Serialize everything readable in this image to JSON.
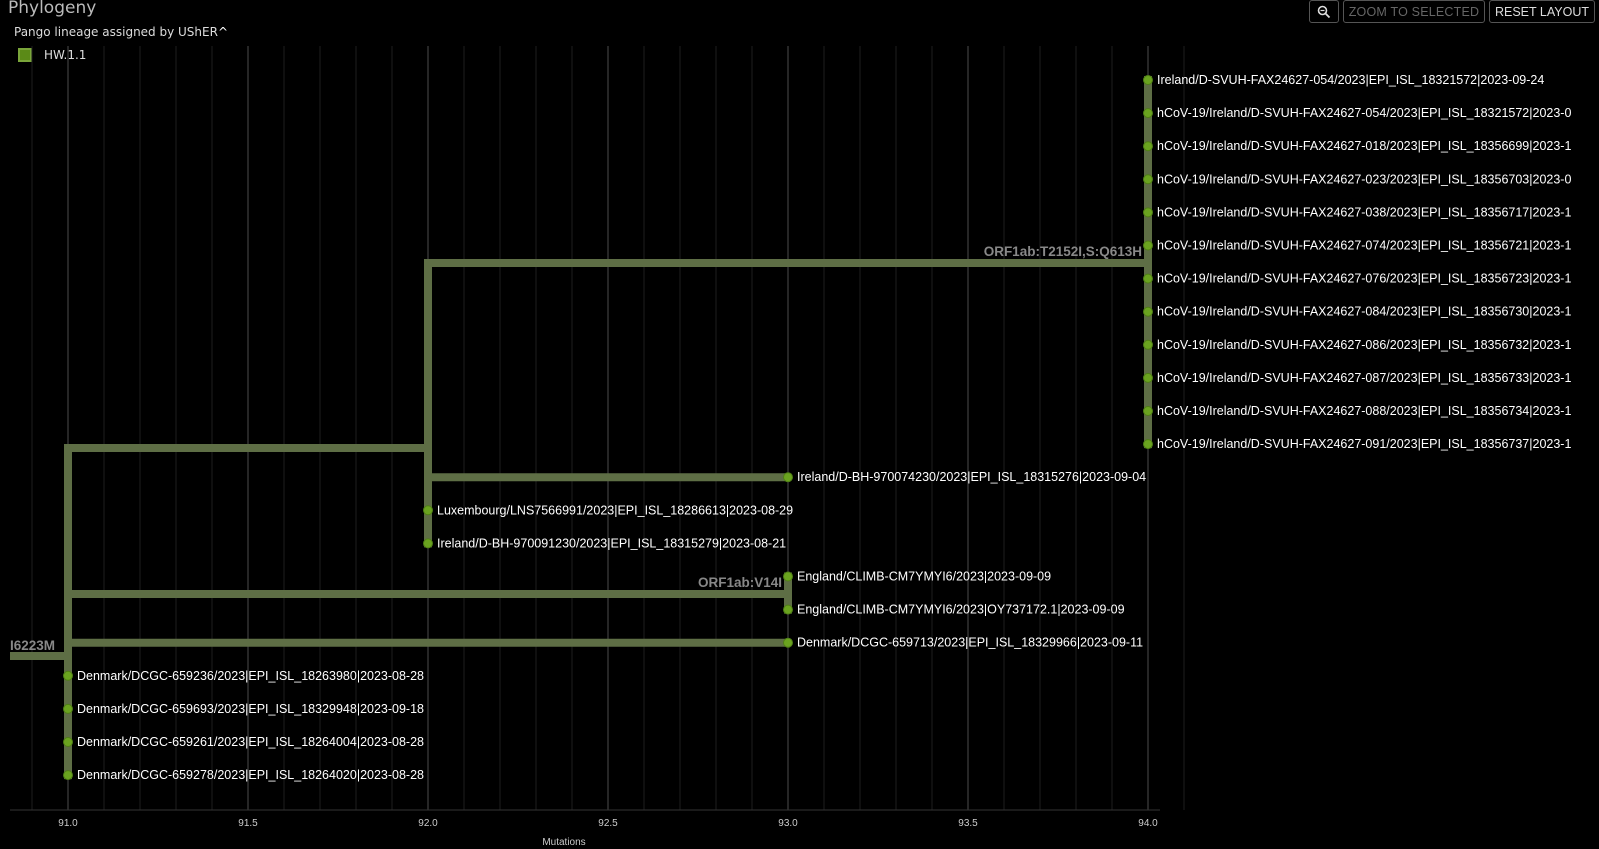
{
  "panel": {
    "title": "Phylogeny"
  },
  "legend": {
    "header": "Pango lineage assigned by UShER",
    "chevron": "^",
    "items": [
      {
        "label": "HW.1.1",
        "color": "#5b8a17"
      }
    ]
  },
  "toolbar": {
    "zoom_icon": "magnifier-icon",
    "zoom_selected_label": "ZOOM TO SELECTED",
    "reset_layout_label": "RESET LAYOUT"
  },
  "colors": {
    "branch": "#5e6e45",
    "tip": "#6aa31f",
    "grid_major": "#3a3a3a",
    "grid_minor": "#1e1e1e"
  },
  "axis": {
    "label": "Mutations",
    "ticks": [
      "91.0",
      "91.5",
      "92.0",
      "92.5",
      "93.0",
      "93.5",
      "94.0"
    ],
    "range": [
      90.84,
      94.2
    ]
  },
  "tree": {
    "nodes": [
      {
        "id": "root",
        "div": 90.84,
        "children": [
          "n91"
        ],
        "label": "I6223M"
      },
      {
        "id": "n91",
        "div": 91.0,
        "children": [
          "n92",
          "n93eng",
          "t_dk713",
          "t_dk236",
          "t_dk693",
          "t_dk261",
          "t_dk278"
        ]
      },
      {
        "id": "n92",
        "div": 92.0,
        "children": [
          "n94",
          "t_ire230",
          "t_lux",
          "t_ire1230"
        ]
      },
      {
        "id": "n94",
        "div": 94.0,
        "label": "ORF1ab:T2152I,S:Q613H",
        "children": [
          "t1",
          "t2",
          "t3",
          "t4",
          "t5",
          "t6",
          "t7",
          "t8",
          "t9",
          "t10",
          "t11",
          "t12"
        ]
      },
      {
        "id": "n93eng",
        "div": 93.0,
        "label": "ORF1ab:V14I",
        "children": [
          "t_eng1",
          "t_eng2"
        ]
      },
      {
        "id": "t1",
        "div": 94.0,
        "name": "Ireland/D-SVUH-FAX24627-054/2023|EPI_ISL_18321572|2023-09-24"
      },
      {
        "id": "t2",
        "div": 94.0,
        "name": "hCoV-19/Ireland/D-SVUH-FAX24627-054/2023|EPI_ISL_18321572|2023-0"
      },
      {
        "id": "t3",
        "div": 94.0,
        "name": "hCoV-19/Ireland/D-SVUH-FAX24627-018/2023|EPI_ISL_18356699|2023-1"
      },
      {
        "id": "t4",
        "div": 94.0,
        "name": "hCoV-19/Ireland/D-SVUH-FAX24627-023/2023|EPI_ISL_18356703|2023-0"
      },
      {
        "id": "t5",
        "div": 94.0,
        "name": "hCoV-19/Ireland/D-SVUH-FAX24627-038/2023|EPI_ISL_18356717|2023-1"
      },
      {
        "id": "t6",
        "div": 94.0,
        "name": "hCoV-19/Ireland/D-SVUH-FAX24627-074/2023|EPI_ISL_18356721|2023-1"
      },
      {
        "id": "t7",
        "div": 94.0,
        "name": "hCoV-19/Ireland/D-SVUH-FAX24627-076/2023|EPI_ISL_18356723|2023-1"
      },
      {
        "id": "t8",
        "div": 94.0,
        "name": "hCoV-19/Ireland/D-SVUH-FAX24627-084/2023|EPI_ISL_18356730|2023-1"
      },
      {
        "id": "t9",
        "div": 94.0,
        "name": "hCoV-19/Ireland/D-SVUH-FAX24627-086/2023|EPI_ISL_18356732|2023-1"
      },
      {
        "id": "t10",
        "div": 94.0,
        "name": "hCoV-19/Ireland/D-SVUH-FAX24627-087/2023|EPI_ISL_18356733|2023-1"
      },
      {
        "id": "t11",
        "div": 94.0,
        "name": "hCoV-19/Ireland/D-SVUH-FAX24627-088/2023|EPI_ISL_18356734|2023-1"
      },
      {
        "id": "t12",
        "div": 94.0,
        "name": "hCoV-19/Ireland/D-SVUH-FAX24627-091/2023|EPI_ISL_18356737|2023-1"
      },
      {
        "id": "t_ire230",
        "div": 93.0,
        "name": "Ireland/D-BH-970074230/2023|EPI_ISL_18315276|2023-09-04"
      },
      {
        "id": "t_lux",
        "div": 92.0,
        "name": "Luxembourg/LNS7566991/2023|EPI_ISL_18286613|2023-08-29"
      },
      {
        "id": "t_ire1230",
        "div": 92.0,
        "name": "Ireland/D-BH-970091230/2023|EPI_ISL_18315279|2023-08-21"
      },
      {
        "id": "t_eng1",
        "div": 93.0,
        "name": "England/CLIMB-CM7YMYI6/2023|2023-09-09"
      },
      {
        "id": "t_eng2",
        "div": 93.0,
        "name": "England/CLIMB-CM7YMYI6/2023|OY737172.1|2023-09-09"
      },
      {
        "id": "t_dk713",
        "div": 93.0,
        "name": "Denmark/DCGC-659713/2023|EPI_ISL_18329966|2023-09-11"
      },
      {
        "id": "t_dk236",
        "div": 91.0,
        "name": "Denmark/DCGC-659236/2023|EPI_ISL_18263980|2023-08-28"
      },
      {
        "id": "t_dk693",
        "div": 91.0,
        "name": "Denmark/DCGC-659693/2023|EPI_ISL_18329948|2023-09-18"
      },
      {
        "id": "t_dk261",
        "div": 91.0,
        "name": "Denmark/DCGC-659261/2023|EPI_ISL_18264004|2023-08-28"
      },
      {
        "id": "t_dk278",
        "div": 91.0,
        "name": "Denmark/DCGC-659278/2023|EPI_ISL_18264020|2023-08-28"
      }
    ]
  }
}
